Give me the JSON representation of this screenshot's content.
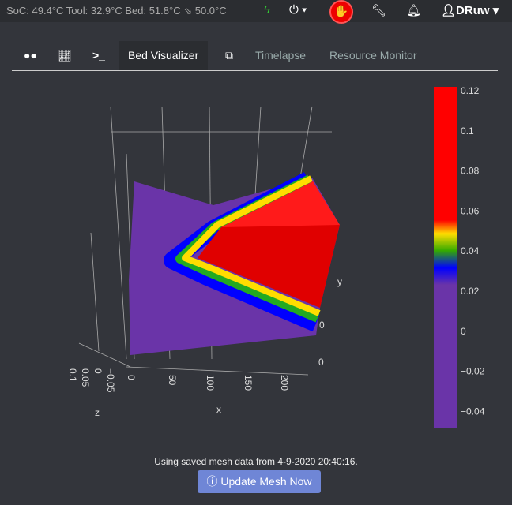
{
  "topbar": {
    "status": "SoC: 49.4°C Tool: 32.9°C Bed: 51.8°C ⇘ 50.0°C",
    "user": "DRuw",
    "icons": [
      "bolt-icon",
      "power-icon",
      "stop-hand-icon",
      "wrench-icon",
      "bell-icon",
      "user-icon"
    ]
  },
  "tabs": [
    {
      "label": "Bed Visualizer"
    },
    {
      "label": "Timelapse"
    },
    {
      "label": "Resource Monitor"
    }
  ],
  "plot": {
    "colorbar_ticks": [
      "0.12",
      "0.1",
      "0.08",
      "0.06",
      "0.04",
      "0.02",
      "0",
      "−0.02",
      "−0.04"
    ],
    "x_ticks": [
      "0",
      "50",
      "100",
      "150",
      "200"
    ],
    "x_label": "x",
    "z_ticks": [
      "0.1",
      "0.05",
      "0",
      "−0.05"
    ],
    "z_label": "z",
    "y_label": "y",
    "y_ticks": [
      "0",
      "0"
    ],
    "colors": {
      "high": "#ff0000",
      "mid": "#ffff00",
      "low": "#0000ff",
      "min": "#6a34a8"
    }
  },
  "footer": {
    "note": "Using saved mesh data from 4-9-2020 20:40:16.",
    "button": "Update Mesh Now"
  }
}
